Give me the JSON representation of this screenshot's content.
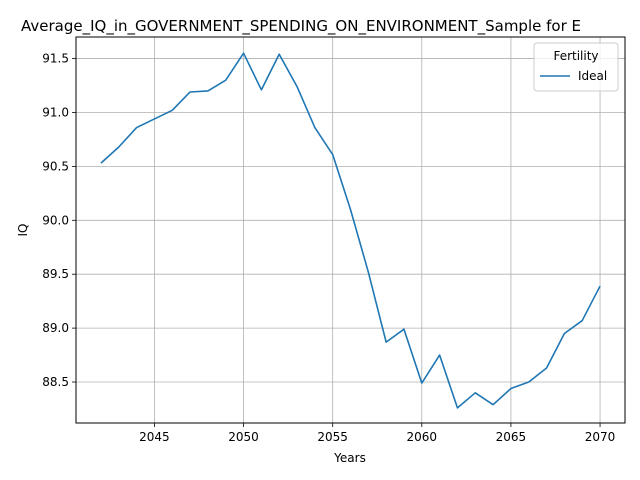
{
  "chart_data": {
    "type": "line",
    "title": "Average_IQ_in_GOVERNMENT_SPENDING_ON_ENVIRONMENT_Sample for E",
    "xlabel": "Years",
    "ylabel": "IQ",
    "xlim": [
      2040.6,
      2071.4
    ],
    "ylim": [
      88.12,
      91.7
    ],
    "xticks": [
      2045,
      2050,
      2055,
      2060,
      2065,
      2070
    ],
    "yticks": [
      88.5,
      89.0,
      89.5,
      90.0,
      90.5,
      91.0,
      91.5
    ],
    "ytick_labels": [
      "88.5",
      "89.0",
      "89.5",
      "90.0",
      "90.5",
      "91.0",
      "91.5"
    ],
    "grid": true,
    "legend": {
      "title": "Fertility",
      "placement": "top-right"
    },
    "series": [
      {
        "name": "Ideal",
        "color": "#1f77b4",
        "x": [
          2042,
          2043,
          2044,
          2045,
          2046,
          2047,
          2048,
          2049,
          2050,
          2051,
          2052,
          2053,
          2054,
          2055,
          2056,
          2057,
          2058,
          2059,
          2060,
          2061,
          2062,
          2063,
          2064,
          2065,
          2066,
          2067,
          2068,
          2069,
          2070
        ],
        "y": [
          90.53,
          90.68,
          90.86,
          90.94,
          91.02,
          91.19,
          91.2,
          91.3,
          91.55,
          91.21,
          91.54,
          91.24,
          90.86,
          90.61,
          90.1,
          89.52,
          88.87,
          88.99,
          88.49,
          88.75,
          88.26,
          88.4,
          88.29,
          88.44,
          88.5,
          88.63,
          88.95,
          89.07,
          89.39
        ]
      }
    ]
  }
}
